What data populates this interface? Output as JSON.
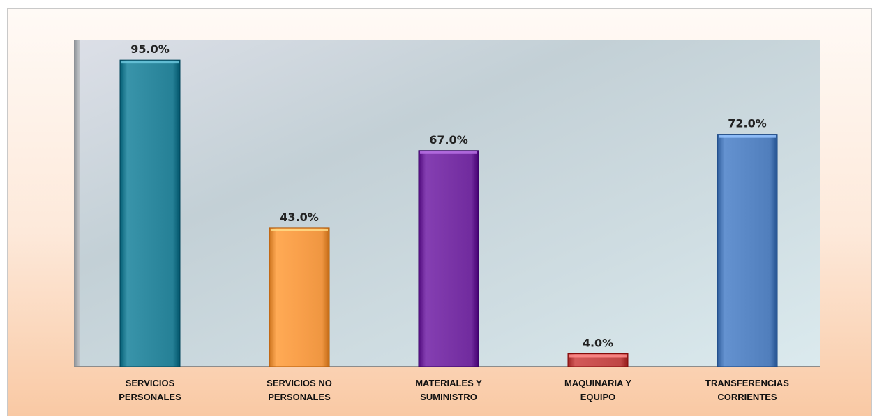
{
  "chart_data": {
    "type": "bar",
    "categories": [
      [
        "SERVICIOS",
        "PERSONALES"
      ],
      [
        "SERVICIOS NO",
        "PERSONALES"
      ],
      [
        "MATERIALES Y",
        "SUMINISTRO"
      ],
      [
        "MAQUINARIA Y",
        "EQUIPO"
      ],
      [
        "TRANSFERENCIAS",
        "CORRIENTES"
      ]
    ],
    "values": [
      95.0,
      43.0,
      67.0,
      4.0,
      72.0
    ],
    "value_labels": [
      "95.0%",
      "43.0%",
      "67.0%",
      "4.0%",
      "72.0%"
    ],
    "colors": [
      "#2f8aa0",
      "#f9a04b",
      "#7b35a8",
      "#c9504f",
      "#5a88c6"
    ],
    "ylim": [
      0,
      100
    ],
    "title": "",
    "xlabel": "",
    "ylabel": "",
    "grid": false,
    "legend": "none"
  }
}
